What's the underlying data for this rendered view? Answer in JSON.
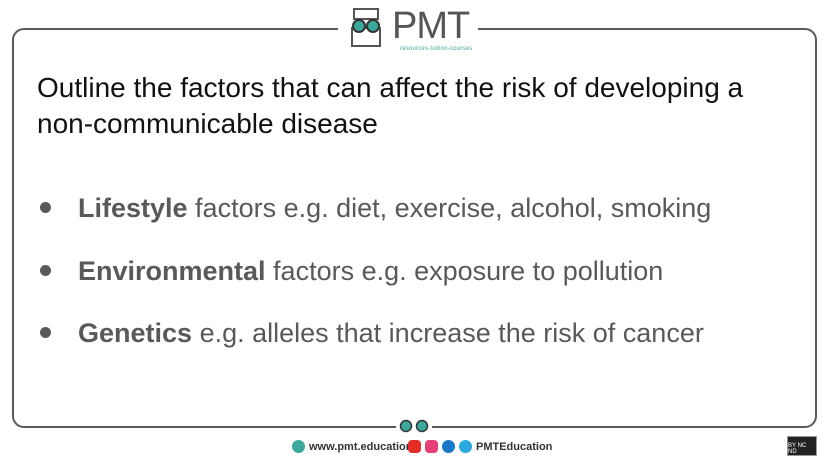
{
  "logo": {
    "text": "PMT",
    "tagline": "resources-tuition-courses"
  },
  "title": "Outline the factors that can affect the risk of developing a non-communicable disease",
  "bullets": [
    {
      "bold": "Lifestyle",
      "rest": " factors e.g. diet, exercise, alcohol, smoking"
    },
    {
      "bold": "Environmental",
      "rest": " factors e.g. exposure to pollution"
    },
    {
      "bold": "Genetics",
      "rest": " e.g. alleles that increase the risk of cancer"
    }
  ],
  "footer": {
    "website": "www.pmt.education",
    "social": "PMTEducation",
    "license": "BY NC ND"
  },
  "colors": {
    "accent": "#3aa89a",
    "text_gray": "#595959",
    "youtube": "#e52d27",
    "instagram": "#e4407a",
    "facebook": "#1877c9",
    "twitter": "#2aa9e0"
  }
}
